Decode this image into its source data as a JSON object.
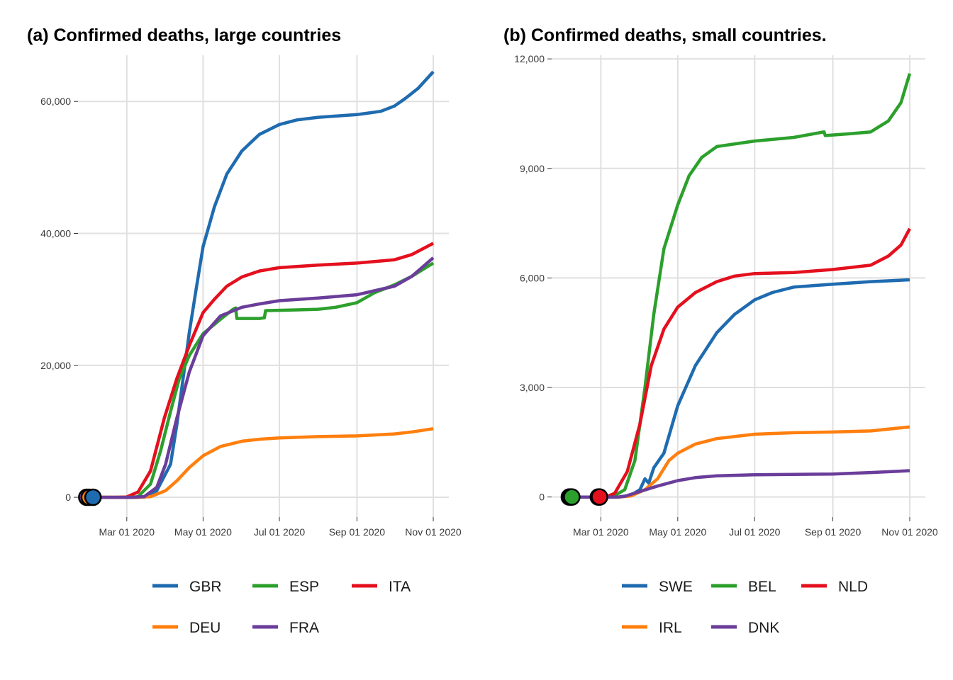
{
  "chart_data": [
    {
      "type": "line",
      "title": "(a) Confirmed deaths, large countries",
      "xlabel": "",
      "ylabel": "",
      "x_ticks": [
        "Mar 01 2020",
        "May 01 2020",
        "Jul 01 2020",
        "Sep 01 2020",
        "Nov 01 2020"
      ],
      "y_ticks": [
        "0",
        "20,000",
        "40,000",
        "60,000"
      ],
      "xlim": [
        "2020-01-22",
        "2020-11-01"
      ],
      "ylim": [
        -3000,
        67000
      ],
      "grid": true,
      "legend_position": "bottom",
      "start_markers": [
        {
          "date": "2020-01-29",
          "color": "#6a3d9a"
        },
        {
          "date": "2020-01-31",
          "color": "#ff7f0e"
        },
        {
          "date": "2020-02-03",
          "color": "#1f6bb0"
        }
      ],
      "series": [
        {
          "name": "GBR",
          "color": "#1f6bb0",
          "points": [
            [
              "2020-01-28",
              0
            ],
            [
              "2020-03-05",
              0
            ],
            [
              "2020-03-15",
              50
            ],
            [
              "2020-03-25",
              1000
            ],
            [
              "2020-04-05",
              5000
            ],
            [
              "2020-04-10",
              11000
            ],
            [
              "2020-04-15",
              18000
            ],
            [
              "2020-04-20",
              25000
            ],
            [
              "2020-04-25",
              31000
            ],
            [
              "2020-05-01",
              38000
            ],
            [
              "2020-05-10",
              44000
            ],
            [
              "2020-05-20",
              49000
            ],
            [
              "2020-06-01",
              52500
            ],
            [
              "2020-06-15",
              55000
            ],
            [
              "2020-07-01",
              56500
            ],
            [
              "2020-07-15",
              57200
            ],
            [
              "2020-08-01",
              57600
            ],
            [
              "2020-09-01",
              58000
            ],
            [
              "2020-09-20",
              58500
            ],
            [
              "2020-10-01",
              59300
            ],
            [
              "2020-10-10",
              60500
            ],
            [
              "2020-10-20",
              62000
            ],
            [
              "2020-11-01",
              64500
            ]
          ]
        },
        {
          "name": "ESP",
          "color": "#2ca02c",
          "points": [
            [
              "2020-01-28",
              0
            ],
            [
              "2020-03-05",
              0
            ],
            [
              "2020-03-10",
              100
            ],
            [
              "2020-03-20",
              2000
            ],
            [
              "2020-03-28",
              7000
            ],
            [
              "2020-04-05",
              13000
            ],
            [
              "2020-04-12",
              18000
            ],
            [
              "2020-04-20",
              21500
            ],
            [
              "2020-05-01",
              24800
            ],
            [
              "2020-05-15",
              27000
            ],
            [
              "2020-05-25",
              28500
            ],
            [
              "2020-05-27",
              28700
            ],
            [
              "2020-05-28",
              27100
            ],
            [
              "2020-06-15",
              27100
            ],
            [
              "2020-06-19",
              27200
            ],
            [
              "2020-06-20",
              28300
            ],
            [
              "2020-07-15",
              28400
            ],
            [
              "2020-08-01",
              28500
            ],
            [
              "2020-08-15",
              28800
            ],
            [
              "2020-09-01",
              29500
            ],
            [
              "2020-09-15",
              31000
            ],
            [
              "2020-10-01",
              32200
            ],
            [
              "2020-10-15",
              33500
            ],
            [
              "2020-11-01",
              35500
            ]
          ]
        },
        {
          "name": "ITA",
          "color": "#e4101e",
          "points": [
            [
              "2020-01-28",
              0
            ],
            [
              "2020-02-22",
              0
            ],
            [
              "2020-03-01",
              50
            ],
            [
              "2020-03-10",
              800
            ],
            [
              "2020-03-20",
              4000
            ],
            [
              "2020-03-31",
              12000
            ],
            [
              "2020-04-10",
              18000
            ],
            [
              "2020-04-20",
              23000
            ],
            [
              "2020-05-01",
              28000
            ],
            [
              "2020-05-10",
              30000
            ],
            [
              "2020-05-20",
              32000
            ],
            [
              "2020-06-01",
              33400
            ],
            [
              "2020-06-15",
              34300
            ],
            [
              "2020-07-01",
              34800
            ],
            [
              "2020-08-01",
              35200
            ],
            [
              "2020-09-01",
              35500
            ],
            [
              "2020-10-01",
              36000
            ],
            [
              "2020-10-15",
              36800
            ],
            [
              "2020-11-01",
              38500
            ]
          ]
        },
        {
          "name": "DEU",
          "color": "#ff7f0e",
          "points": [
            [
              "2020-01-28",
              0
            ],
            [
              "2020-03-10",
              0
            ],
            [
              "2020-03-20",
              100
            ],
            [
              "2020-04-01",
              1000
            ],
            [
              "2020-04-10",
              2500
            ],
            [
              "2020-04-20",
              4500
            ],
            [
              "2020-05-01",
              6300
            ],
            [
              "2020-05-15",
              7700
            ],
            [
              "2020-06-01",
              8500
            ],
            [
              "2020-06-15",
              8800
            ],
            [
              "2020-07-01",
              9000
            ],
            [
              "2020-08-01",
              9200
            ],
            [
              "2020-09-01",
              9300
            ],
            [
              "2020-10-01",
              9600
            ],
            [
              "2020-10-15",
              9900
            ],
            [
              "2020-11-01",
              10400
            ]
          ]
        },
        {
          "name": "FRA",
          "color": "#6a3d9a",
          "points": [
            [
              "2020-01-28",
              0
            ],
            [
              "2020-03-05",
              0
            ],
            [
              "2020-03-15",
              100
            ],
            [
              "2020-03-25",
              1500
            ],
            [
              "2020-04-01",
              5000
            ],
            [
              "2020-04-10",
              12000
            ],
            [
              "2020-04-20",
              19000
            ],
            [
              "2020-05-01",
              24500
            ],
            [
              "2020-05-15",
              27500
            ],
            [
              "2020-06-01",
              28800
            ],
            [
              "2020-06-15",
              29300
            ],
            [
              "2020-07-01",
              29800
            ],
            [
              "2020-08-01",
              30200
            ],
            [
              "2020-09-01",
              30700
            ],
            [
              "2020-10-01",
              32000
            ],
            [
              "2020-10-15",
              33500
            ],
            [
              "2020-11-01",
              36300
            ]
          ]
        }
      ]
    },
    {
      "type": "line",
      "title": "(b) Confirmed deaths, small countries.",
      "xlabel": "",
      "ylabel": "",
      "x_ticks": [
        "Mar 01 2020",
        "May 01 2020",
        "Jul 01 2020",
        "Sep 01 2020",
        "Nov 01 2020"
      ],
      "y_ticks": [
        "0",
        "3,000",
        "6,000",
        "9,000",
        "12,000"
      ],
      "xlim": [
        "2020-01-22",
        "2020-11-01"
      ],
      "ylim": [
        -550,
        12100
      ],
      "grid": true,
      "legend_position": "bottom",
      "start_markers": [
        {
          "date": "2020-02-05",
          "color": "#6a3d9a"
        },
        {
          "date": "2020-02-06",
          "color": "#1f6bb0"
        },
        {
          "date": "2020-02-07",
          "color": "#2ca02c"
        },
        {
          "date": "2020-02-28",
          "color": "#ff7f0e"
        },
        {
          "date": "2020-02-29",
          "color": "#e4101e"
        }
      ],
      "series": [
        {
          "name": "SWE",
          "color": "#1f6bb0",
          "points": [
            [
              "2020-02-01",
              0
            ],
            [
              "2020-03-15",
              0
            ],
            [
              "2020-03-25",
              50
            ],
            [
              "2020-04-01",
              200
            ],
            [
              "2020-04-05",
              500
            ],
            [
              "2020-04-08",
              380
            ],
            [
              "2020-04-12",
              800
            ],
            [
              "2020-04-20",
              1200
            ],
            [
              "2020-05-01",
              2500
            ],
            [
              "2020-05-15",
              3600
            ],
            [
              "2020-06-01",
              4500
            ],
            [
              "2020-06-15",
              5000
            ],
            [
              "2020-07-01",
              5400
            ],
            [
              "2020-07-15",
              5600
            ],
            [
              "2020-08-01",
              5750
            ],
            [
              "2020-09-01",
              5830
            ],
            [
              "2020-10-01",
              5900
            ],
            [
              "2020-11-01",
              5950
            ]
          ]
        },
        {
          "name": "BEL",
          "color": "#2ca02c",
          "points": [
            [
              "2020-02-01",
              0
            ],
            [
              "2020-03-10",
              0
            ],
            [
              "2020-03-20",
              200
            ],
            [
              "2020-03-28",
              1000
            ],
            [
              "2020-04-05",
              3000
            ],
            [
              "2020-04-12",
              5000
            ],
            [
              "2020-04-20",
              6800
            ],
            [
              "2020-05-01",
              8000
            ],
            [
              "2020-05-10",
              8800
            ],
            [
              "2020-05-20",
              9300
            ],
            [
              "2020-06-01",
              9600
            ],
            [
              "2020-07-01",
              9750
            ],
            [
              "2020-08-01",
              9850
            ],
            [
              "2020-08-25",
              10000
            ],
            [
              "2020-08-26",
              9900
            ],
            [
              "2020-09-15",
              9950
            ],
            [
              "2020-10-01",
              10000
            ],
            [
              "2020-10-15",
              10300
            ],
            [
              "2020-10-25",
              10800
            ],
            [
              "2020-11-01",
              11600
            ]
          ]
        },
        {
          "name": "NLD",
          "color": "#e4101e",
          "points": [
            [
              "2020-02-01",
              0
            ],
            [
              "2020-03-05",
              0
            ],
            [
              "2020-03-12",
              100
            ],
            [
              "2020-03-22",
              700
            ],
            [
              "2020-04-01",
              2000
            ],
            [
              "2020-04-10",
              3600
            ],
            [
              "2020-04-20",
              4600
            ],
            [
              "2020-05-01",
              5200
            ],
            [
              "2020-05-15",
              5600
            ],
            [
              "2020-06-01",
              5900
            ],
            [
              "2020-06-15",
              6050
            ],
            [
              "2020-07-01",
              6120
            ],
            [
              "2020-08-01",
              6150
            ],
            [
              "2020-09-01",
              6230
            ],
            [
              "2020-10-01",
              6350
            ],
            [
              "2020-10-15",
              6600
            ],
            [
              "2020-10-25",
              6900
            ],
            [
              "2020-11-01",
              7350
            ]
          ]
        },
        {
          "name": "IRL",
          "color": "#ff7f0e",
          "points": [
            [
              "2020-02-01",
              0
            ],
            [
              "2020-03-15",
              0
            ],
            [
              "2020-03-25",
              30
            ],
            [
              "2020-04-05",
              200
            ],
            [
              "2020-04-15",
              500
            ],
            [
              "2020-04-24",
              1000
            ],
            [
              "2020-05-01",
              1200
            ],
            [
              "2020-05-15",
              1450
            ],
            [
              "2020-06-01",
              1600
            ],
            [
              "2020-07-01",
              1720
            ],
            [
              "2020-08-01",
              1760
            ],
            [
              "2020-09-01",
              1780
            ],
            [
              "2020-10-01",
              1810
            ],
            [
              "2020-11-01",
              1920
            ]
          ]
        },
        {
          "name": "DNK",
          "color": "#6a3d9a",
          "points": [
            [
              "2020-02-01",
              0
            ],
            [
              "2020-03-15",
              0
            ],
            [
              "2020-03-20",
              20
            ],
            [
              "2020-04-01",
              150
            ],
            [
              "2020-04-15",
              300
            ],
            [
              "2020-05-01",
              450
            ],
            [
              "2020-05-15",
              530
            ],
            [
              "2020-06-01",
              580
            ],
            [
              "2020-07-01",
              610
            ],
            [
              "2020-08-01",
              620
            ],
            [
              "2020-09-01",
              630
            ],
            [
              "2020-10-01",
              670
            ],
            [
              "2020-11-01",
              720
            ]
          ]
        }
      ]
    }
  ]
}
